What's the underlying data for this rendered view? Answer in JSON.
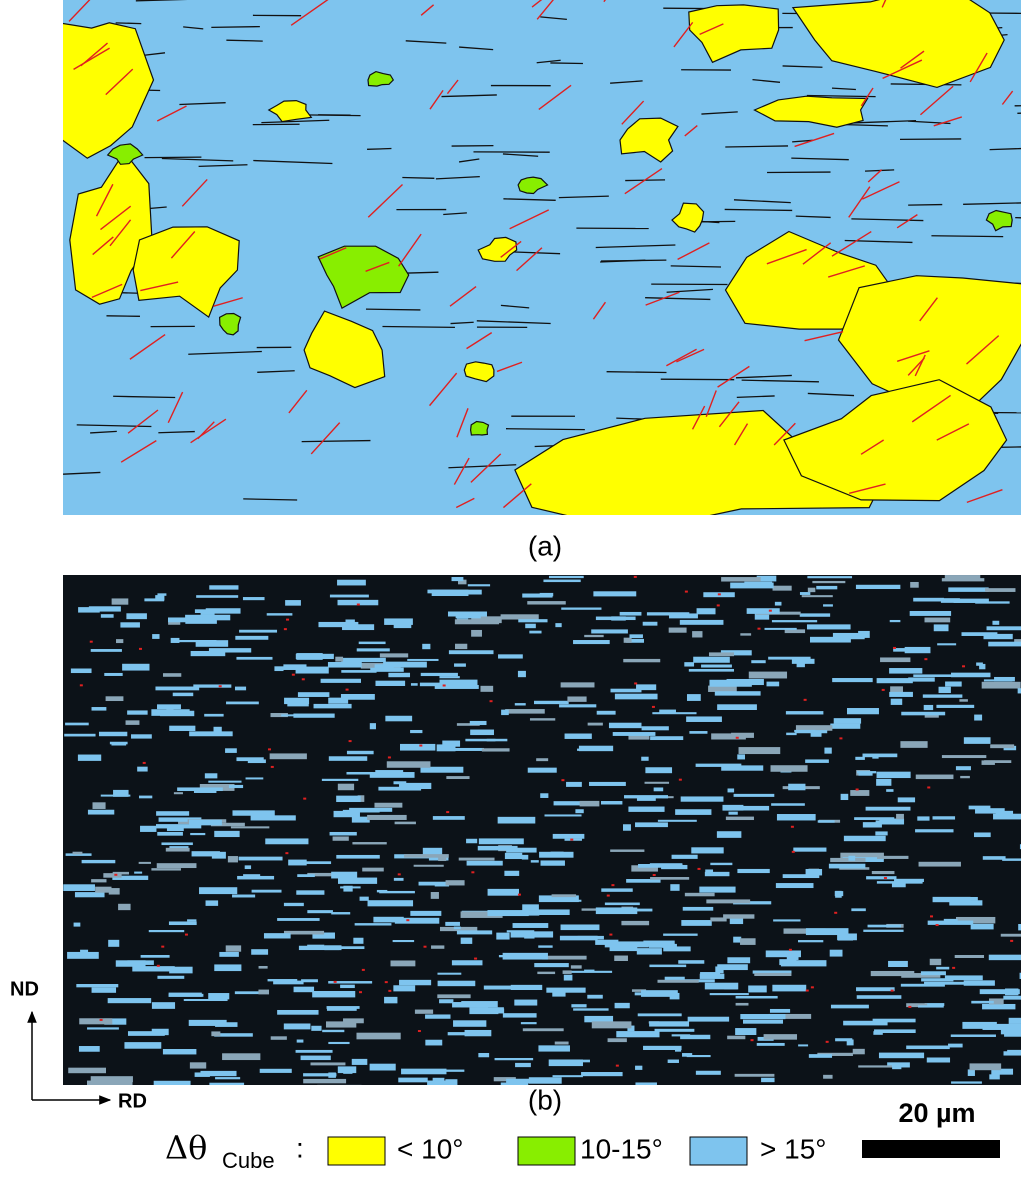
{
  "panels": [
    {
      "label": "(a)"
    },
    {
      "label": "(b)"
    }
  ],
  "axes": {
    "vertical": "ND",
    "horizontal": "RD"
  },
  "legend": {
    "symbol": "Δθ",
    "subscript": "Cube",
    "separator": ":",
    "items": [
      {
        "label": "< 10°",
        "color": "#ffff00"
      },
      {
        "label": "10-15°",
        "color": "#88ee00"
      },
      {
        "label": "> 15°",
        "color": "#7ec4ee"
      }
    ]
  },
  "scale_bar": {
    "label": "20 µm"
  }
}
